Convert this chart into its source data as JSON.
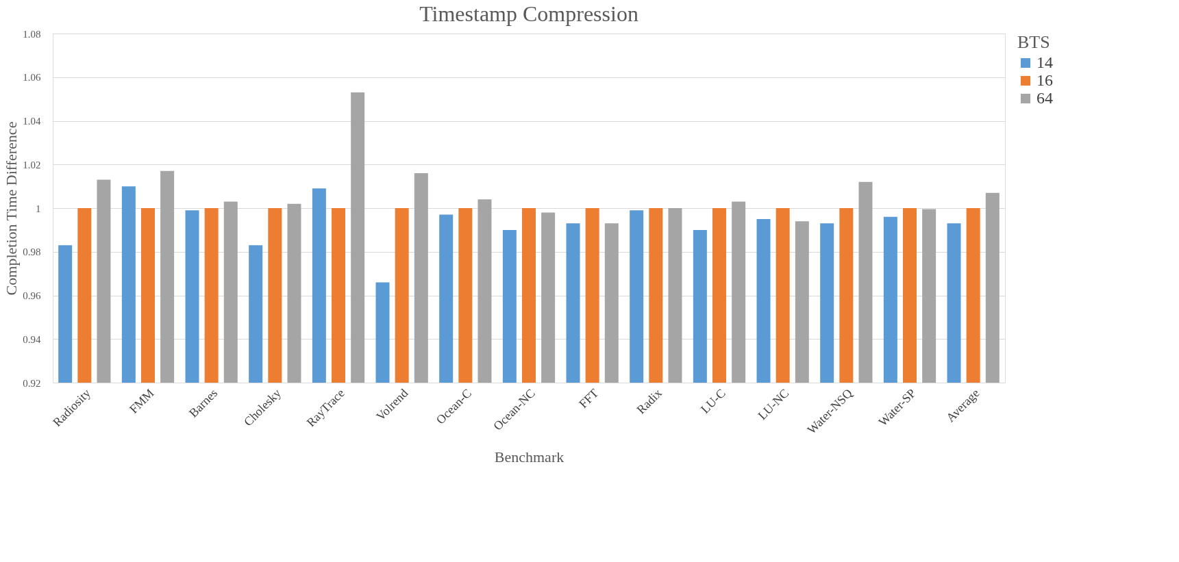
{
  "chart_data": {
    "type": "bar",
    "title": "Timestamp Compression",
    "xlabel": "Benchmark",
    "ylabel": "Completion Time Difference",
    "legend_title": "BTS",
    "categories": [
      "Radiosity",
      "FMM",
      "Barnes",
      "Cholesky",
      "RayTrace",
      "Volrend",
      "Ocean-C",
      "Ocean-NC",
      "FFT",
      "Radix",
      "LU-C",
      "LU-NC",
      "Water-NSQ",
      "Water-SP",
      "Average"
    ],
    "series": [
      {
        "name": "14",
        "color": "#5b9bd5",
        "values": [
          0.983,
          1.01,
          0.999,
          0.983,
          1.009,
          0.966,
          0.997,
          0.99,
          0.993,
          0.999,
          0.99,
          0.995,
          0.993,
          0.996,
          0.993
        ]
      },
      {
        "name": "16",
        "color": "#ed7d31",
        "values": [
          1.0,
          1.0,
          1.0,
          1.0,
          1.0,
          1.0,
          1.0,
          1.0,
          1.0,
          1.0,
          1.0,
          1.0,
          1.0,
          1.0,
          1.0
        ]
      },
      {
        "name": "64",
        "color": "#a5a5a5",
        "values": [
          1.013,
          1.017,
          1.003,
          1.002,
          1.053,
          1.016,
          1.004,
          0.998,
          0.993,
          1.0,
          1.003,
          0.994,
          1.012,
          0.9995,
          1.007
        ]
      }
    ],
    "ylim": [
      0.92,
      1.08
    ],
    "yticks": [
      0.92,
      0.94,
      0.96,
      0.98,
      1,
      1.02,
      1.04,
      1.06,
      1.08
    ],
    "grid": "y",
    "legend": "right"
  }
}
